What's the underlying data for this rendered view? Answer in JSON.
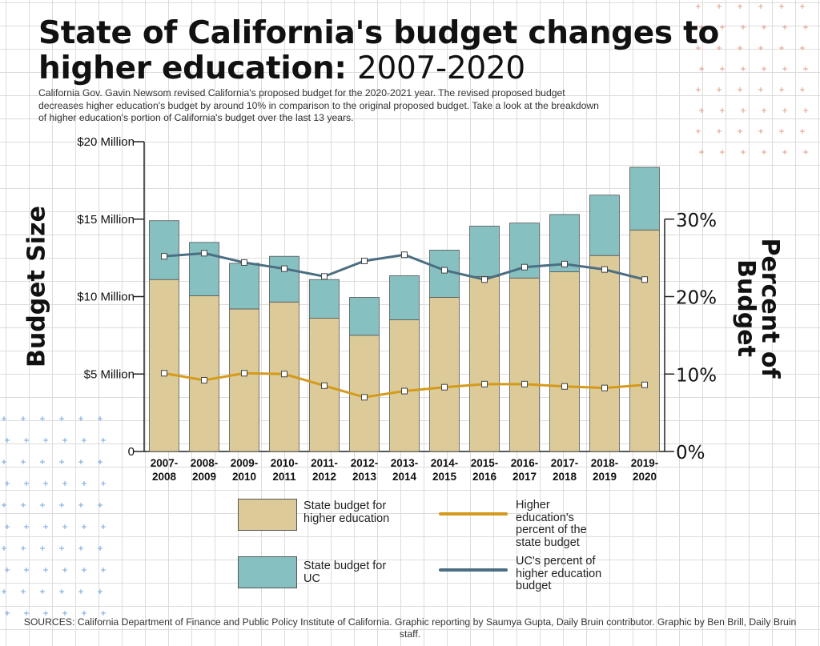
{
  "header": {
    "title_bold": "State of California's budget changes to higher education:",
    "title_light": "2007-2020",
    "subtitle": "California Gov. Gavin Newsom revised California's proposed budget for the 2020-2021 year. The revised proposed budget decreases higher education's budget by around 10% in comparison to the original proposed budget. Take a look at the breakdown of higher education's portion of California's budget over the last 13 years."
  },
  "axes": {
    "left_title": "Budget Size",
    "right_title": "Percent of Budget"
  },
  "legend": {
    "state_label": "State budget for higher education",
    "uc_label": "State budget for UC",
    "highered_pct_label": "Higher education's percent of the state budget",
    "uc_pct_label": "UC's percent of higher education budget"
  },
  "footer": {
    "sources": "SOURCES: California Department of Finance and Public Policy Institute of California. Graphic reporting by Saumya Gupta, Daily Bruin contributor. Graphic by Ben Brill, Daily Bruin staff."
  },
  "chart_data": {
    "type": "bar",
    "stacked": true,
    "categories": [
      "2007-2008",
      "2008-2009",
      "2009-2010",
      "2010-2011",
      "2011-2012",
      "2012-2013",
      "2013-2014",
      "2014-2015",
      "2015-2016",
      "2016-2017",
      "2017-2018",
      "2018-2019",
      "2019-2020"
    ],
    "series": [
      {
        "name": "State budget for higher education",
        "axis": "left",
        "values": [
          11.1,
          10.05,
          9.2,
          9.65,
          8.6,
          7.5,
          8.5,
          9.95,
          11.3,
          11.2,
          11.6,
          12.65,
          14.3
        ]
      },
      {
        "name": "State budget for UC",
        "axis": "left",
        "values": [
          3.8,
          3.45,
          2.95,
          2.95,
          2.5,
          2.45,
          2.85,
          3.05,
          3.25,
          3.55,
          3.7,
          3.9,
          4.05
        ]
      },
      {
        "name": "Higher education's percent of the state budget",
        "type": "line",
        "axis": "right",
        "values": [
          10.1,
          9.2,
          10.1,
          10.0,
          8.5,
          7.0,
          7.8,
          8.3,
          8.7,
          8.7,
          8.4,
          8.2,
          8.6
        ]
      },
      {
        "name": "UC's percent of higher education budget",
        "type": "line",
        "axis": "right",
        "values": [
          25.2,
          25.6,
          24.4,
          23.6,
          22.6,
          24.6,
          25.4,
          23.4,
          22.2,
          23.8,
          24.2,
          23.5,
          22.2
        ]
      }
    ],
    "left_axis": {
      "ticks": [
        "0",
        "$5 Million",
        "$10 Million",
        "$15 Million",
        "$20 Million"
      ],
      "ylim": [
        0,
        20
      ]
    },
    "right_axis": {
      "ticks": [
        "0%",
        "10%",
        "20%",
        "30%"
      ],
      "ylim": [
        0,
        40
      ]
    },
    "colors": {
      "state": "#dccb98",
      "uc": "#86c0c0",
      "highered_line": "#d49a1c",
      "uc_line": "#4b6e82"
    }
  }
}
